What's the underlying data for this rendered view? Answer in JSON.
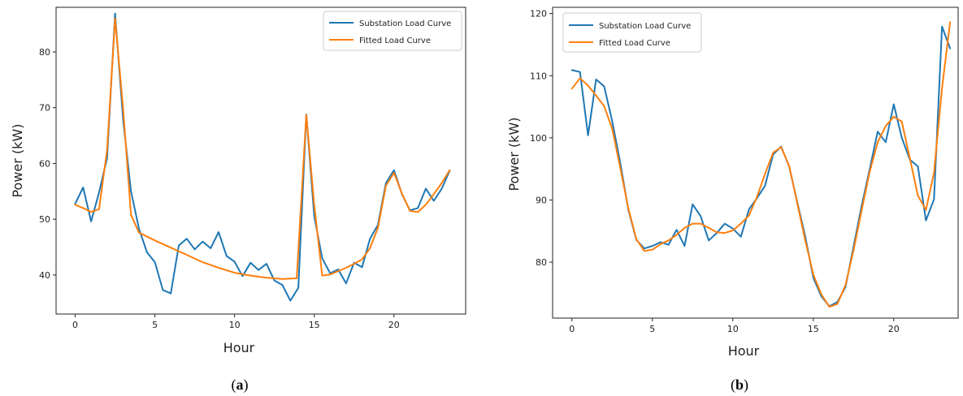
{
  "figure": {
    "captions": [
      {
        "paren_open": "(",
        "letter": "a",
        "paren_close": ")"
      },
      {
        "paren_open": "(",
        "letter": "b",
        "paren_close": ")"
      }
    ]
  },
  "colors": {
    "substation": "#1f77b4",
    "fitted": "#ff7f0e"
  },
  "chart_data": [
    {
      "type": "line",
      "xlabel": "Hour",
      "ylabel": "Power (kW)",
      "xlim": [
        -1.2,
        24.5
      ],
      "ylim": [
        33,
        88
      ],
      "xticks": [
        0,
        5,
        10,
        15,
        20
      ],
      "yticks": [
        40,
        50,
        60,
        70,
        80
      ],
      "grid": false,
      "legend_position": "top-right",
      "series": [
        {
          "name": "Substation Load Curve",
          "color": "#1f77b4",
          "x": [
            0,
            0.5,
            1,
            1.5,
            2,
            2.5,
            3,
            3.5,
            4,
            4.5,
            5,
            5.5,
            6,
            6.5,
            7,
            7.5,
            8,
            8.5,
            9,
            9.5,
            10,
            10.5,
            11,
            11.5,
            12,
            12.5,
            13,
            13.5,
            14,
            14.5,
            15,
            15.5,
            16,
            16.5,
            17,
            17.5,
            18,
            18.5,
            19,
            19.5,
            20,
            20.5,
            21,
            21.5,
            22,
            22.5,
            23,
            23.5
          ],
          "y": [
            52.8,
            55.7,
            49.6,
            54.8,
            61.0,
            86.9,
            68.0,
            55.0,
            48.3,
            44.1,
            42.3,
            37.3,
            36.7,
            45.3,
            46.5,
            44.6,
            46.0,
            44.8,
            47.7,
            43.4,
            42.4,
            39.8,
            42.2,
            40.9,
            42.0,
            39.0,
            38.2,
            35.4,
            37.7,
            68.8,
            50.5,
            43.0,
            40.3,
            41.0,
            38.5,
            42.2,
            41.4,
            46.5,
            49.0,
            56.5,
            58.8,
            54.5,
            51.6,
            52.0,
            55.5,
            53.3,
            55.5,
            58.7
          ]
        },
        {
          "name": "Fitted Load Curve",
          "color": "#ff7f0e",
          "x": [
            0,
            0.5,
            1,
            1.5,
            2,
            2.5,
            3,
            3.5,
            4,
            5,
            6,
            7,
            8,
            9,
            10,
            11,
            12,
            13,
            13.9,
            14.5,
            15,
            15.5,
            16,
            16.5,
            17,
            17.5,
            18,
            18.5,
            19,
            19.5,
            20,
            20.5,
            21,
            21.5,
            22,
            22.5,
            23,
            23.5
          ],
          "y": [
            52.6,
            52.0,
            51.3,
            51.8,
            62.5,
            86.0,
            70.0,
            50.8,
            47.6,
            46.2,
            44.9,
            43.6,
            42.3,
            41.3,
            40.4,
            39.9,
            39.5,
            39.3,
            39.4,
            68.7,
            52.5,
            39.9,
            40.1,
            40.7,
            41.3,
            42.0,
            42.8,
            44.8,
            48.5,
            56.0,
            58.3,
            54.6,
            51.5,
            51.3,
            52.6,
            54.5,
            56.5,
            58.8
          ]
        }
      ]
    },
    {
      "type": "line",
      "xlabel": "Hour",
      "ylabel": "Power (kW)",
      "xlim": [
        -1.2,
        24.0
      ],
      "ylim": [
        71,
        121
      ],
      "xticks": [
        0,
        5,
        10,
        15,
        20
      ],
      "yticks": [
        80,
        90,
        100,
        110,
        120
      ],
      "grid": false,
      "legend_position": "top-left",
      "series": [
        {
          "name": "Substation Load Curve",
          "color": "#1f77b4",
          "x": [
            0,
            0.5,
            1,
            1.5,
            2,
            2.5,
            3,
            3.5,
            4,
            4.5,
            5,
            5.5,
            6,
            6.5,
            7,
            7.5,
            8,
            8.5,
            9,
            9.5,
            10,
            10.5,
            11,
            11.5,
            12,
            12.5,
            13,
            13.5,
            14,
            14.5,
            15,
            15.5,
            16,
            16.5,
            17,
            17.5,
            18,
            18.5,
            19,
            19.5,
            20,
            20.5,
            21,
            21.5,
            22,
            22.5,
            23,
            23.5
          ],
          "y": [
            110.9,
            110.6,
            100.4,
            109.4,
            108.3,
            102.7,
            96.0,
            88.5,
            83.6,
            82.2,
            82.6,
            83.2,
            82.8,
            85.2,
            82.6,
            89.3,
            87.4,
            83.5,
            84.7,
            86.2,
            85.4,
            84.1,
            88.5,
            90.3,
            92.3,
            97.3,
            98.6,
            95.4,
            89.7,
            84.1,
            77.5,
            74.5,
            72.9,
            73.6,
            76.0,
            82.5,
            89.0,
            94.9,
            101.0,
            99.3,
            105.4,
            100.0,
            96.5,
            95.4,
            86.7,
            90.1,
            117.9,
            114.4
          ]
        },
        {
          "name": "Fitted Load Curve",
          "color": "#ff7f0e",
          "x": [
            0,
            0.5,
            1,
            1.5,
            2,
            2.5,
            3,
            3.5,
            4,
            4.5,
            5,
            5.5,
            6,
            6.5,
            7,
            7.5,
            8,
            8.5,
            9,
            9.5,
            10,
            10.5,
            11,
            11.5,
            12,
            12.5,
            13,
            13.5,
            14,
            14.5,
            15,
            15.5,
            16,
            16.5,
            17,
            17.5,
            18,
            18.5,
            19,
            19.5,
            20,
            20.5,
            21,
            21.5,
            22,
            22.5,
            23,
            23.5
          ],
          "y": [
            107.9,
            109.6,
            108.4,
            106.8,
            105.1,
            101.5,
            95.2,
            88.7,
            83.7,
            81.8,
            82.0,
            82.9,
            83.5,
            84.4,
            85.5,
            86.2,
            86.2,
            85.5,
            84.8,
            84.7,
            85.1,
            86.2,
            87.5,
            90.5,
            94.2,
            97.6,
            98.5,
            95.5,
            89.5,
            83.5,
            78.0,
            74.8,
            72.8,
            73.3,
            76.3,
            81.9,
            88.3,
            94.5,
            99.3,
            101.9,
            103.4,
            102.6,
            96.7,
            90.7,
            88.4,
            94.4,
            108.0,
            118.6
          ]
        }
      ]
    }
  ]
}
